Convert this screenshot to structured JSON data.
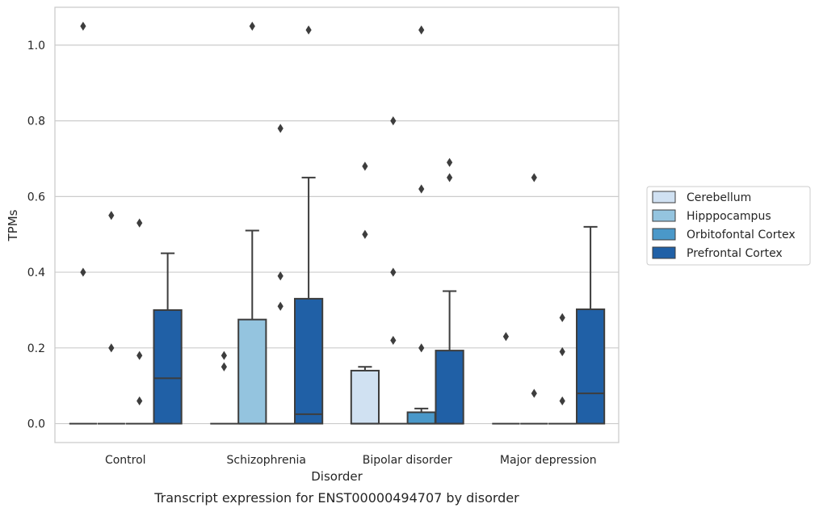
{
  "chart_data": {
    "type": "box",
    "caption": "Transcript expression for ENST00000494707 by disorder",
    "xlabel": "Disorder",
    "ylabel": "TPMs",
    "ylim": [
      -0.05,
      1.1
    ],
    "yticks": [
      0.0,
      0.2,
      0.4,
      0.6,
      0.8,
      1.0
    ],
    "ytick_labels": [
      "0.0",
      "0.2",
      "0.4",
      "0.6",
      "0.8",
      "1.0"
    ],
    "grid": "horizontal",
    "legend_position": "right",
    "categories": [
      "Control",
      "Schizophrenia",
      "Bipolar disorder",
      "Major depression"
    ],
    "series": [
      {
        "name": "Cerebellum",
        "color": "#d0e1f2",
        "boxes": [
          {
            "q1": 0,
            "median": 0,
            "q3": 0,
            "whisker_low": 0,
            "whisker_high": 0,
            "outliers": [
              0.4,
              1.05
            ]
          },
          {
            "q1": 0,
            "median": 0,
            "q3": 0,
            "whisker_low": 0,
            "whisker_high": 0,
            "outliers": [
              0.15,
              0.18
            ]
          },
          {
            "q1": 0,
            "median": 0,
            "q3": 0.14,
            "whisker_low": 0,
            "whisker_high": 0.15,
            "outliers": [
              0.5,
              0.68
            ]
          },
          {
            "q1": 0,
            "median": 0,
            "q3": 0,
            "whisker_low": 0,
            "whisker_high": 0,
            "outliers": [
              0.23
            ]
          }
        ]
      },
      {
        "name": "Hipppocampus",
        "color": "#94c4df",
        "boxes": [
          {
            "q1": 0,
            "median": 0,
            "q3": 0,
            "whisker_low": 0,
            "whisker_high": 0,
            "outliers": [
              0.2,
              0.55
            ]
          },
          {
            "q1": 0,
            "median": 0,
            "q3": 0.275,
            "whisker_low": 0,
            "whisker_high": 0.51,
            "outliers": [
              1.05
            ]
          },
          {
            "q1": 0,
            "median": 0,
            "q3": 0,
            "whisker_low": 0,
            "whisker_high": 0,
            "outliers": [
              0.22,
              0.4,
              0.8
            ]
          },
          {
            "q1": 0,
            "median": 0,
            "q3": 0,
            "whisker_low": 0,
            "whisker_high": 0,
            "outliers": [
              0.08,
              0.65
            ]
          }
        ]
      },
      {
        "name": "Orbitofontal Cortex",
        "color": "#4a98c9",
        "boxes": [
          {
            "q1": 0,
            "median": 0,
            "q3": 0,
            "whisker_low": 0,
            "whisker_high": 0,
            "outliers": [
              0.06,
              0.18,
              0.53
            ]
          },
          {
            "q1": 0,
            "median": 0,
            "q3": 0,
            "whisker_low": 0,
            "whisker_high": 0,
            "outliers": [
              0.31,
              0.39,
              0.78
            ]
          },
          {
            "q1": 0,
            "median": 0,
            "q3": 0.03,
            "whisker_low": 0,
            "whisker_high": 0.04,
            "outliers": [
              0.2,
              0.62,
              1.04
            ]
          },
          {
            "q1": 0,
            "median": 0,
            "q3": 0,
            "whisker_low": 0,
            "whisker_high": 0,
            "outliers": [
              0.06,
              0.19,
              0.28
            ]
          }
        ]
      },
      {
        "name": "Prefrontal Cortex",
        "color": "#2060a6",
        "boxes": [
          {
            "q1": 0,
            "median": 0.12,
            "q3": 0.3,
            "whisker_low": 0,
            "whisker_high": 0.45,
            "outliers": []
          },
          {
            "q1": 0,
            "median": 0.025,
            "q3": 0.33,
            "whisker_low": 0,
            "whisker_high": 0.65,
            "outliers": [
              1.04
            ]
          },
          {
            "q1": 0,
            "median": 0,
            "q3": 0.193,
            "whisker_low": 0,
            "whisker_high": 0.35,
            "outliers": [
              0.65,
              0.69
            ]
          },
          {
            "q1": 0,
            "median": 0.08,
            "q3": 0.302,
            "whisker_low": 0,
            "whisker_high": 0.52,
            "outliers": []
          }
        ]
      }
    ],
    "styles": {
      "edge_color": "#3d3d3d",
      "grid_color": "#cccccc",
      "frame_color": "#cccccc",
      "outlier_color": "#3d3d3d"
    }
  }
}
